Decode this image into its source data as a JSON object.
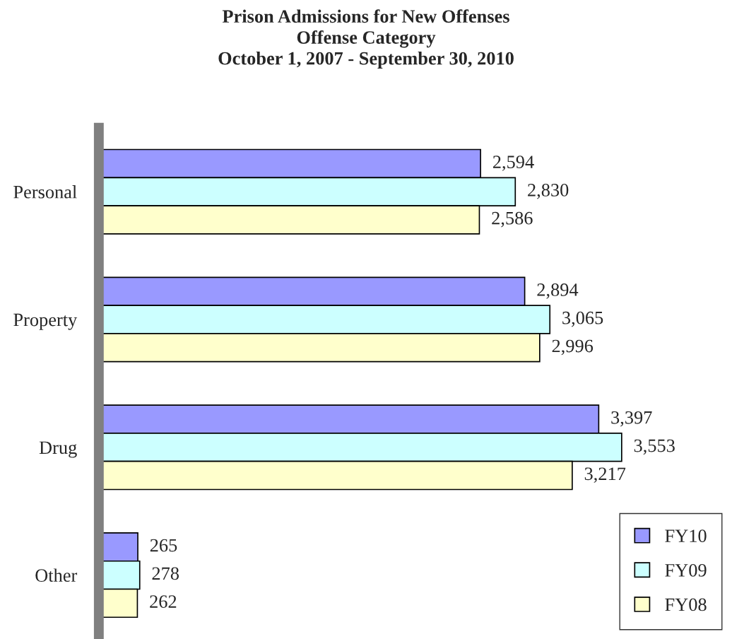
{
  "chart_data": {
    "type": "bar",
    "orientation": "horizontal",
    "title": "Prison Admissions for New Offenses\nOffense Category\nOctober 1, 2007 - September 30, 2010",
    "categories": [
      "Personal",
      "Property",
      "Drug",
      "Other"
    ],
    "series": [
      {
        "name": "FY10",
        "color": "#9999ff",
        "values": [
          2594,
          2894,
          3397,
          265
        ],
        "value_labels": [
          "2,594",
          "2,894",
          "3,397",
          "265"
        ]
      },
      {
        "name": "FY09",
        "color": "#ccffff",
        "values": [
          2830,
          3065,
          3553,
          278
        ],
        "value_labels": [
          "2,830",
          "3,065",
          "3,553",
          "278"
        ]
      },
      {
        "name": "FY08",
        "color": "#ffffcc",
        "values": [
          2586,
          2996,
          3217,
          262
        ],
        "value_labels": [
          "2,586",
          "2,996",
          "3,217",
          "262"
        ]
      }
    ],
    "legend": "bottom right",
    "grid": false
  }
}
